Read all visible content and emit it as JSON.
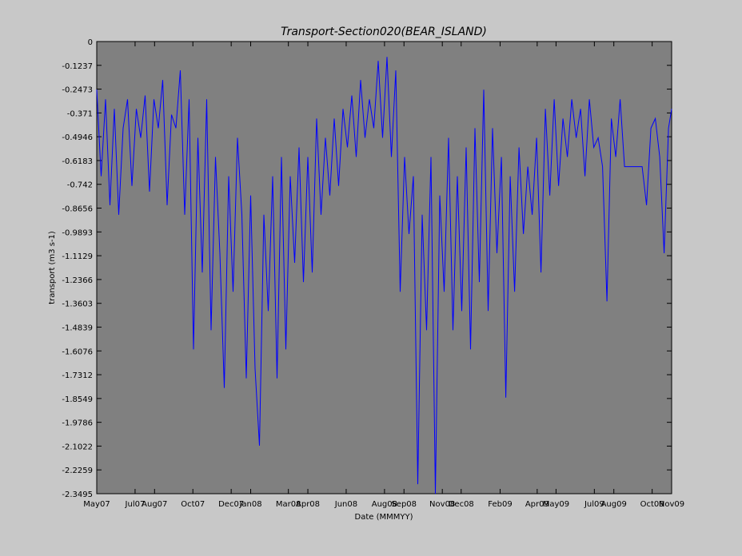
{
  "chart_data": {
    "type": "line",
    "title": "Transport-Section020(BEAR_ISLAND)",
    "xlabel": "Date (MMMYY)",
    "ylabel": "transport (m3 s-1)",
    "ylim": [
      -2.3495,
      0
    ],
    "yticks": [
      "0",
      "-0.1237",
      "-0.2473",
      "-0.371",
      "-0.4946",
      "-0.6183",
      "-0.742",
      "-0.8656",
      "-0.9893",
      "-1.1129",
      "-1.2366",
      "-1.3603",
      "-1.4839",
      "-1.6076",
      "-1.7312",
      "-1.8549",
      "-1.9786",
      "-2.1022",
      "-2.2259",
      "-2.3495"
    ],
    "xlim": [
      "2007-05-01",
      "2009-11-01"
    ],
    "xticks": [
      {
        "label": "May07",
        "date": "2007-05-01"
      },
      {
        "label": "Jul07",
        "date": "2007-07-01"
      },
      {
        "label": "Aug07",
        "date": "2007-08-01"
      },
      {
        "label": "Oct07",
        "date": "2007-10-01"
      },
      {
        "label": "Dec07",
        "date": "2007-12-01"
      },
      {
        "label": "Jan08",
        "date": "2008-01-01"
      },
      {
        "label": "Mar08",
        "date": "2008-03-01"
      },
      {
        "label": "Apr08",
        "date": "2008-04-01"
      },
      {
        "label": "Jun08",
        "date": "2008-06-01"
      },
      {
        "label": "Aug08",
        "date": "2008-08-01"
      },
      {
        "label": "Sep08",
        "date": "2008-09-01"
      },
      {
        "label": "Nov08",
        "date": "2008-11-01"
      },
      {
        "label": "Dec08",
        "date": "2008-12-01"
      },
      {
        "label": "Feb09",
        "date": "2009-02-01"
      },
      {
        "label": "Apr09",
        "date": "2009-04-01"
      },
      {
        "label": "May09",
        "date": "2009-05-01"
      },
      {
        "label": "Jul09",
        "date": "2009-07-01"
      },
      {
        "label": "Aug09",
        "date": "2009-08-01"
      },
      {
        "label": "Oct09",
        "date": "2009-10-01"
      },
      {
        "label": "Nov09",
        "date": "2009-11-01"
      }
    ],
    "grid": false,
    "legend": "none",
    "colors": {
      "plot_background": "#808080",
      "figure_background": "#c8c8c8",
      "line": "#0000ff",
      "axes": "#000000"
    },
    "series": [
      {
        "x": [
          "2007-05-01",
          "2007-05-08",
          "2007-05-15",
          "2007-05-22",
          "2007-05-29",
          "2007-06-05",
          "2007-06-12",
          "2007-06-19",
          "2007-06-26",
          "2007-07-03",
          "2007-07-10",
          "2007-07-17",
          "2007-07-24",
          "2007-07-31",
          "2007-08-07",
          "2007-08-14",
          "2007-08-21",
          "2007-08-28",
          "2007-09-04",
          "2007-09-11",
          "2007-09-18",
          "2007-09-25",
          "2007-10-02",
          "2007-10-09",
          "2007-10-16",
          "2007-10-23",
          "2007-10-30",
          "2007-11-06",
          "2007-11-13",
          "2007-11-20",
          "2007-11-27",
          "2007-12-04",
          "2007-12-11",
          "2007-12-18",
          "2007-12-25",
          "2008-01-01",
          "2008-01-08",
          "2008-01-15",
          "2008-01-22",
          "2008-01-29",
          "2008-02-05",
          "2008-02-12",
          "2008-02-19",
          "2008-02-26",
          "2008-03-04",
          "2008-03-11",
          "2008-03-18",
          "2008-03-25",
          "2008-04-01",
          "2008-04-08",
          "2008-04-15",
          "2008-04-22",
          "2008-04-29",
          "2008-05-06",
          "2008-05-13",
          "2008-05-20",
          "2008-05-27",
          "2008-06-03",
          "2008-06-10",
          "2008-06-17",
          "2008-06-24",
          "2008-07-01",
          "2008-07-08",
          "2008-07-15",
          "2008-07-22",
          "2008-07-29",
          "2008-08-05",
          "2008-08-12",
          "2008-08-19",
          "2008-08-26",
          "2008-09-02",
          "2008-09-09",
          "2008-09-16",
          "2008-09-23",
          "2008-09-30",
          "2008-10-07",
          "2008-10-14",
          "2008-10-21",
          "2008-10-28",
          "2008-11-04",
          "2008-11-11",
          "2008-11-18",
          "2008-11-25",
          "2008-12-02",
          "2008-12-09",
          "2008-12-16",
          "2008-12-23",
          "2008-12-30",
          "2009-01-06",
          "2009-01-13",
          "2009-01-20",
          "2009-01-27",
          "2009-02-03",
          "2009-02-10",
          "2009-02-17",
          "2009-02-24",
          "2009-03-03",
          "2009-03-10",
          "2009-03-17",
          "2009-03-24",
          "2009-03-31",
          "2009-04-07",
          "2009-04-14",
          "2009-04-21",
          "2009-04-28",
          "2009-05-05",
          "2009-05-12",
          "2009-05-19",
          "2009-05-26",
          "2009-06-02",
          "2009-06-09",
          "2009-06-16",
          "2009-06-23",
          "2009-06-30",
          "2009-07-07",
          "2009-07-14",
          "2009-07-21",
          "2009-07-28",
          "2009-08-04",
          "2009-08-11",
          "2009-08-18",
          "2009-08-25",
          "2009-09-01",
          "2009-09-08",
          "2009-09-15",
          "2009-09-22",
          "2009-09-29",
          "2009-10-06",
          "2009-10-13",
          "2009-10-20",
          "2009-10-27",
          "2009-11-01"
        ],
        "y": [
          -0.25,
          -0.7,
          -0.3,
          -0.85,
          -0.35,
          -0.9,
          -0.45,
          -0.3,
          -0.75,
          -0.35,
          -0.5,
          -0.28,
          -0.78,
          -0.3,
          -0.45,
          -0.2,
          -0.85,
          -0.38,
          -0.45,
          -0.15,
          -0.9,
          -0.3,
          -1.6,
          -0.5,
          -1.2,
          -0.3,
          -1.5,
          -0.6,
          -1.1,
          -1.8,
          -0.7,
          -1.3,
          -0.5,
          -0.9,
          -1.75,
          -0.8,
          -1.7,
          -2.1,
          -0.9,
          -1.4,
          -0.7,
          -1.75,
          -0.6,
          -1.6,
          -0.7,
          -1.15,
          -0.55,
          -1.25,
          -0.6,
          -1.2,
          -0.4,
          -0.9,
          -0.5,
          -0.8,
          -0.4,
          -0.75,
          -0.35,
          -0.55,
          -0.28,
          -0.6,
          -0.2,
          -0.5,
          -0.3,
          -0.45,
          -0.1,
          -0.5,
          -0.08,
          -0.6,
          -0.15,
          -1.3,
          -0.6,
          -1.0,
          -0.7,
          -2.3,
          -0.9,
          -1.5,
          -0.6,
          -2.35,
          -0.8,
          -1.3,
          -0.5,
          -1.5,
          -0.7,
          -1.4,
          -0.55,
          -1.6,
          -0.45,
          -1.25,
          -0.25,
          -1.4,
          -0.45,
          -1.1,
          -0.6,
          -1.85,
          -0.7,
          -1.3,
          -0.55,
          -1.0,
          -0.65,
          -0.9,
          -0.5,
          -1.2,
          -0.35,
          -0.8,
          -0.3,
          -0.75,
          -0.4,
          -0.6,
          -0.3,
          -0.5,
          -0.35,
          -0.7,
          -0.3,
          -0.55,
          -0.5,
          -0.65,
          -1.35,
          -0.4,
          -0.6,
          -0.3,
          -0.65,
          -0.65,
          -0.65,
          -0.65,
          -0.65,
          -0.85,
          -0.45,
          -0.4,
          -0.6,
          -1.1,
          -0.45,
          -0.35
        ]
      }
    ]
  }
}
